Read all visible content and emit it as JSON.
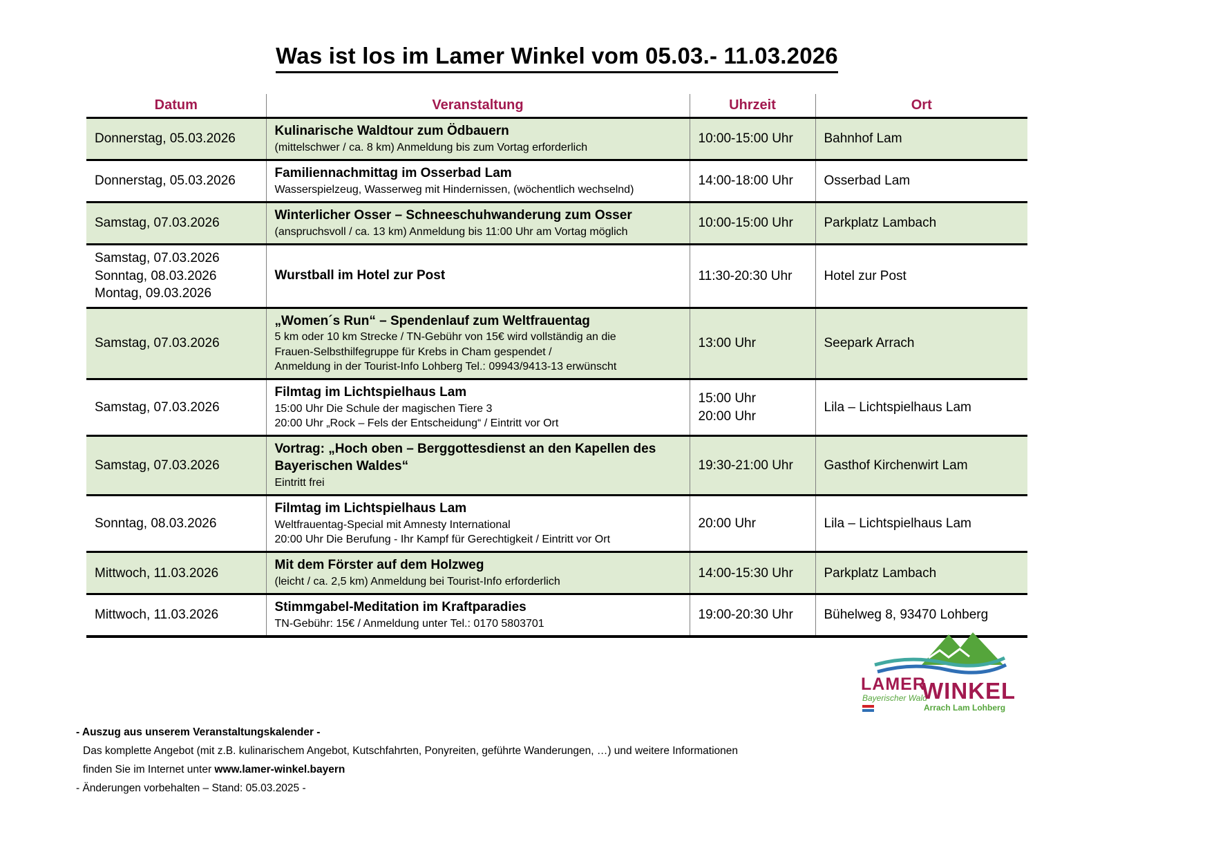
{
  "page_title": "Was ist los im Lamer Winkel vom 05.03.- 11.03.2026",
  "table": {
    "headers": [
      "Datum",
      "Veranstaltung",
      "Uhrzeit",
      "Ort"
    ],
    "rows": [
      {
        "datum": [
          "Donnerstag, 05.03.2026"
        ],
        "titel": "Kulinarische Waldtour zum Ödbauern",
        "details": [
          "(mittelschwer / ca. 8 km) Anmeldung bis zum Vortag erforderlich"
        ],
        "uhrzeit": [
          "10:00-15:00 Uhr"
        ],
        "ort": "Bahnhof Lam",
        "shaded": true
      },
      {
        "datum": [
          "Donnerstag, 05.03.2026"
        ],
        "titel": "Familiennachmittag im Osserbad Lam",
        "details": [
          "Wasserspielzeug, Wasserweg mit Hindernissen, (wöchentlich wechselnd)"
        ],
        "uhrzeit": [
          "14:00-18:00 Uhr"
        ],
        "ort": "Osserbad Lam",
        "shaded": false
      },
      {
        "datum": [
          "Samstag, 07.03.2026"
        ],
        "titel": "Winterlicher Osser – Schneeschuhwanderung zum Osser",
        "details": [
          "(anspruchsvoll / ca. 13 km) Anmeldung bis 11:00 Uhr am Vortag möglich"
        ],
        "uhrzeit": [
          "10:00-15:00 Uhr"
        ],
        "ort": "Parkplatz Lambach",
        "shaded": true
      },
      {
        "datum": [
          "Samstag, 07.03.2026",
          "Sonntag, 08.03.2026",
          "Montag, 09.03.2026"
        ],
        "titel": "Wurstball im Hotel zur Post",
        "details": [],
        "uhrzeit": [
          "11:30-20:30 Uhr"
        ],
        "ort": "Hotel zur Post",
        "shaded": false
      },
      {
        "datum": [
          "Samstag, 07.03.2026"
        ],
        "titel": "„Women´s Run“ – Spendenlauf zum Weltfrauentag",
        "details": [
          "5 km oder 10 km Strecke / TN-Gebühr von 15€ wird vollständig an die",
          "Frauen-Selbsthilfegruppe für Krebs in Cham gespendet /",
          "Anmeldung in der Tourist-Info Lohberg Tel.: 09943/9413-13 erwünscht"
        ],
        "uhrzeit": [
          "13:00 Uhr"
        ],
        "ort": "Seepark Arrach",
        "shaded": true
      },
      {
        "datum": [
          "Samstag, 07.03.2026"
        ],
        "titel": "Filmtag im Lichtspielhaus Lam",
        "details": [
          "15:00 Uhr Die Schule der magischen Tiere 3",
          "20:00 Uhr „Rock – Fels der Entscheidung“ / Eintritt vor Ort"
        ],
        "uhrzeit": [
          "15:00 Uhr",
          "20:00 Uhr"
        ],
        "ort": "Lila – Lichtspielhaus Lam",
        "shaded": false
      },
      {
        "datum": [
          "Samstag, 07.03.2026"
        ],
        "titel": "Vortrag: „Hoch oben – Berggottesdienst an den Kapellen des Bayerischen Waldes“",
        "details": [
          "Eintritt frei"
        ],
        "uhrzeit": [
          "19:30-21:00 Uhr"
        ],
        "ort": "Gasthof Kirchenwirt Lam",
        "shaded": true
      },
      {
        "datum": [
          "Sonntag, 08.03.2026"
        ],
        "titel": "Filmtag im Lichtspielhaus Lam",
        "details": [
          "Weltfrauentag-Special mit Amnesty International",
          "20:00 Uhr Die Berufung - Ihr Kampf für Gerechtigkeit /  Eintritt vor Ort"
        ],
        "uhrzeit": [
          "20:00 Uhr"
        ],
        "ort": "Lila – Lichtspielhaus Lam",
        "shaded": false
      },
      {
        "datum": [
          "Mittwoch, 11.03.2026"
        ],
        "titel": "Mit dem Förster auf dem Holzweg",
        "details": [
          "(leicht / ca. 2,5 km) Anmeldung bei Tourist-Info erforderlich"
        ],
        "uhrzeit": [
          "14:00-15:30 Uhr"
        ],
        "ort": "Parkplatz Lambach",
        "shaded": true
      },
      {
        "datum": [
          "Mittwoch, 11.03.2026"
        ],
        "titel": "Stimmgabel-Meditation im Kraftparadies",
        "details": [
          "TN-Gebühr: 15€ / Anmeldung unter Tel.: 0170 5803701"
        ],
        "uhrzeit": [
          "19:00-20:30 Uhr"
        ],
        "ort": "Bühelweg 8, 93470 Lohberg",
        "shaded": false
      }
    ]
  },
  "footer": {
    "line1": "- Auszug aus unserem Veranstaltungskalender -",
    "line2": "Das komplette Angebot (mit z.B. kulinarischem Angebot, Kutschfahrten, Ponyreiten, geführte Wanderungen, …) und weitere Informationen",
    "line3_prefix": "finden Sie im Internet unter ",
    "line3_link": "www.lamer-winkel.bayern",
    "line4": "- Änderungen vorbehalten – Stand: 05.03.2025 -"
  },
  "logo": {
    "name_line1": "LAMER",
    "name_line2": "WINKEL",
    "region": "Bayerischer Wald",
    "towns": "Arrach Lam Lohberg"
  },
  "colors": {
    "header_text": "#A2194F",
    "row_highlight": "#DFEBD3",
    "logo_green": "#55A53B",
    "logo_teal": "#41A8A0",
    "logo_blue": "#2F6FB5",
    "logo_red": "#D2232A"
  }
}
